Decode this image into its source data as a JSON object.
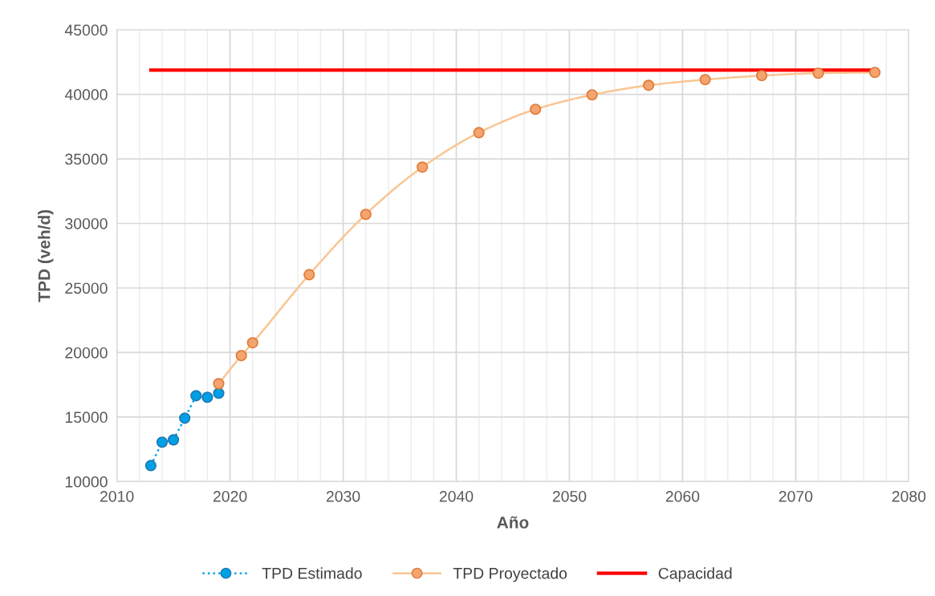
{
  "chart_data": {
    "type": "line",
    "xlabel": "Año",
    "ylabel": "TPD (veh/d)",
    "xlim": [
      2010,
      2080
    ],
    "xticks": [
      2010,
      2020,
      2030,
      2040,
      2050,
      2060,
      2070,
      2080
    ],
    "ylim": [
      10000,
      45000
    ],
    "yticks": [
      10000,
      15000,
      20000,
      25000,
      30000,
      35000,
      40000,
      45000
    ],
    "grid": true,
    "legend": "bottom",
    "series": [
      {
        "name": "TPD Estimado",
        "color": "#00a0e6",
        "marker": "circle",
        "line_style": "dotted",
        "x": [
          2013,
          2014,
          2015,
          2016,
          2017,
          2018,
          2019
        ],
        "values": [
          11240,
          13050,
          13230,
          14910,
          16650,
          16530,
          16840
        ]
      },
      {
        "name": "TPD Proyectado",
        "color": "#f4a46e",
        "marker": "circle",
        "line_style": "solid",
        "x": [
          2019,
          2021,
          2022,
          2027,
          2032,
          2037,
          2042,
          2047,
          2052,
          2057,
          2062,
          2067,
          2072,
          2077
        ],
        "values": [
          17580,
          19760,
          20750,
          26030,
          30700,
          34360,
          37030,
          38840,
          39960,
          40700,
          41140,
          41450,
          41640,
          41700
        ]
      },
      {
        "name": "Capacidad",
        "color": "#ff0000",
        "marker": "none",
        "line_style": "solid",
        "x": [
          2013,
          2077
        ],
        "values": [
          41880,
          41880
        ]
      }
    ]
  }
}
